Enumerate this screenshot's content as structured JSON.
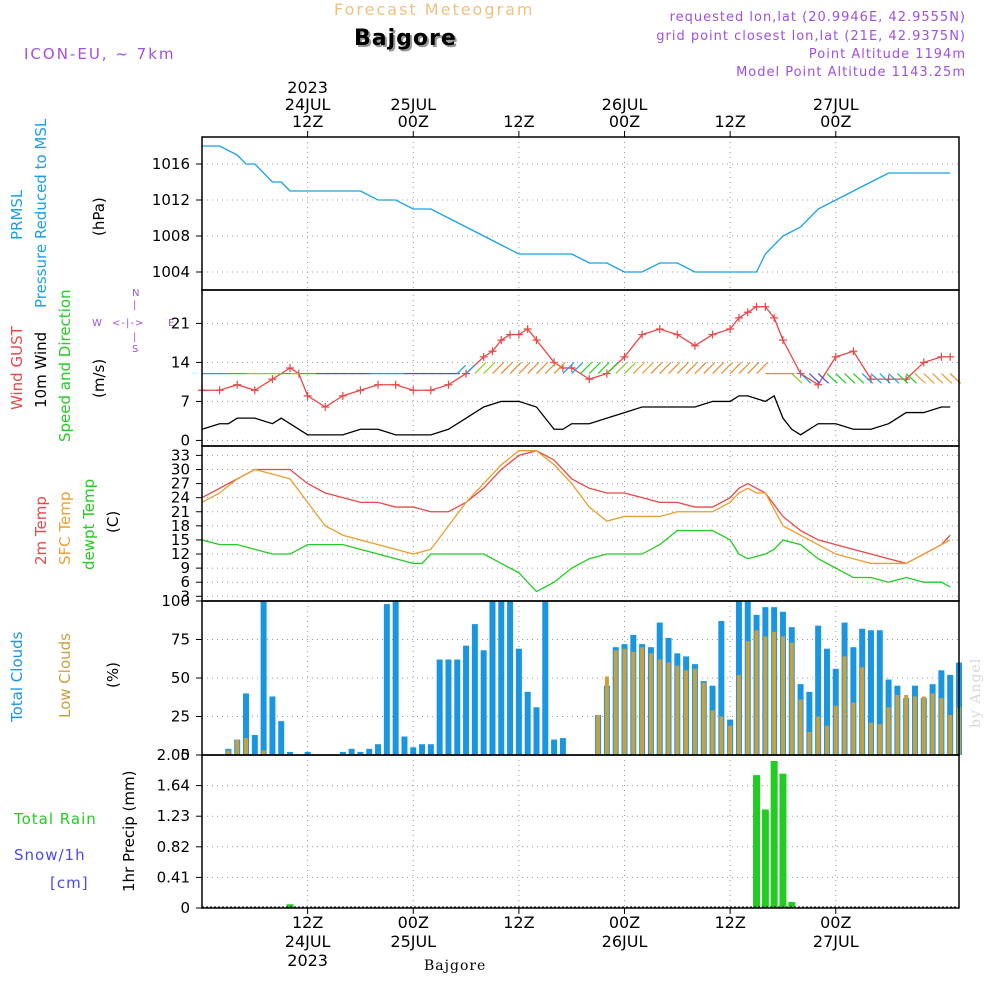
{
  "header": {
    "title_top": "Forecast Meteogram",
    "location": "Bajgore",
    "model": "ICON-EU, ~ 7km",
    "requested": "requested lon,lat (20.9946E, 42.9555N)",
    "grid_point": "grid point closest lon,lat (21E, 42.9375N)",
    "point_alt": "Point Altitude 1194m",
    "model_alt": "Model Point Altitude 1143.25m",
    "bottom_location": "Bajgore",
    "watermark": "by Angel"
  },
  "time_axis": {
    "top_year": "2023",
    "top_labels": [
      {
        "line1": "24JUL",
        "line2": "12Z",
        "h": 12
      },
      {
        "line1": "25JUL",
        "line2": "00Z",
        "h": 24
      },
      {
        "line1": "",
        "line2": "12Z",
        "h": 36
      },
      {
        "line1": "26JUL",
        "line2": "00Z",
        "h": 48
      },
      {
        "line1": "",
        "line2": "12Z",
        "h": 60
      },
      {
        "line1": "27JUL",
        "line2": "00Z",
        "h": 72
      }
    ],
    "bottom_labels": [
      {
        "line1": "12Z",
        "line2": "24JUL",
        "line3": "2023",
        "h": 12
      },
      {
        "line1": "00Z",
        "line2": "25JUL",
        "line3": "",
        "h": 24
      },
      {
        "line1": "12Z",
        "line2": "",
        "line3": "",
        "h": 36
      },
      {
        "line1": "00Z",
        "line2": "26JUL",
        "line3": "",
        "h": 48
      },
      {
        "line1": "12Z",
        "line2": "",
        "line3": "",
        "h": 60
      },
      {
        "line1": "00Z",
        "line2": "27JUL",
        "line3": "",
        "h": 72
      }
    ]
  },
  "panel_labels": {
    "pressure": {
      "name1": "PRMSL",
      "name2": "Pressure Reduced to MSL",
      "unit": "(hPa)"
    },
    "wind": {
      "gust": "Wind GUST",
      "wind10": "10m Wind",
      "speed_dir": "Speed and Direction",
      "unit": "(m/s)",
      "compass_n": "N",
      "compass_s": "S",
      "compass_w": "W",
      "compass_e": "E"
    },
    "temp": {
      "t2m": "2m Temp",
      "sfc": "SFC Temp",
      "dewpt": "dewpt Temp",
      "unit": "(C)"
    },
    "clouds": {
      "total": "Total Clouds",
      "low": "Low Clouds",
      "unit": "(%)"
    },
    "precip": {
      "rain": "Total  Rain",
      "snow": "Snow/1h",
      "snow_unit": "[cm]",
      "axis": "1hr Precip (mm)"
    }
  },
  "colors": {
    "pressure": "#1aa0e6",
    "gust": "#e84848",
    "wind10": "#000000",
    "t2m": "#e84848",
    "sfc": "#e8a030",
    "dewpt": "#22cc22",
    "total_clouds": "#1a96e0",
    "low_clouds": "#c8a040",
    "rain": "#22cc22",
    "snow": "#4a4ae8",
    "purple": "#a050e0",
    "title_orange": "#f0c080"
  },
  "chart_data": [
    {
      "type": "line",
      "name": "Pressure Reduced to MSL",
      "ylabel": "(hPa)",
      "ylim": [
        1002,
        1019
      ],
      "yticks": [
        1004,
        1008,
        1012,
        1016
      ],
      "x": [
        0,
        2,
        4,
        5,
        6,
        8,
        9,
        10,
        12,
        14,
        16,
        18,
        20,
        22,
        24,
        26,
        28,
        30,
        32,
        34,
        36,
        38,
        40,
        42,
        44,
        46,
        48,
        50,
        52,
        54,
        56,
        58,
        60,
        61,
        62,
        63,
        64,
        66,
        68,
        70,
        72,
        74,
        76,
        78,
        80,
        82,
        84,
        85
      ],
      "values": [
        1018,
        1018,
        1017,
        1016,
        1016,
        1014,
        1014,
        1013,
        1013,
        1013,
        1013,
        1013,
        1012,
        1012,
        1011,
        1011,
        1010,
        1009,
        1008,
        1007,
        1006,
        1006,
        1006,
        1006,
        1005,
        1005,
        1004,
        1004,
        1005,
        1005,
        1004,
        1004,
        1004,
        1004,
        1004,
        1004,
        1006,
        1008,
        1009,
        1011,
        1012,
        1013,
        1014,
        1015,
        1015,
        1015,
        1015,
        1015
      ]
    },
    {
      "type": "line",
      "name": "Wind GUST / 10m Wind",
      "ylabel": "(m/s)",
      "ylim": [
        -1,
        27
      ],
      "yticks": [
        0,
        7,
        14,
        21
      ],
      "series": [
        {
          "name": "Wind GUST",
          "x": [
            0,
            2,
            4,
            6,
            8,
            10,
            11,
            12,
            14,
            16,
            18,
            20,
            22,
            24,
            26,
            28,
            30,
            32,
            33,
            34,
            35,
            36,
            37,
            38,
            40,
            41,
            42,
            44,
            46,
            48,
            50,
            52,
            54,
            56,
            58,
            60,
            61,
            62,
            63,
            64,
            65,
            66,
            68,
            70,
            72,
            74,
            76,
            78,
            80,
            82,
            84,
            85
          ],
          "values": [
            9,
            9,
            10,
            9,
            11,
            13,
            12,
            8,
            6,
            8,
            9,
            10,
            10,
            9,
            9,
            10,
            12,
            15,
            16,
            18,
            19,
            19,
            20,
            18,
            14,
            13,
            13,
            11,
            12,
            15,
            19,
            20,
            19,
            17,
            19,
            20,
            22,
            23,
            24,
            24,
            22,
            18,
            12,
            10,
            15,
            16,
            11,
            11,
            11,
            14,
            15,
            15
          ]
        },
        {
          "name": "10m Wind",
          "x": [
            0,
            2,
            3,
            4,
            6,
            8,
            9,
            10,
            12,
            14,
            16,
            18,
            20,
            22,
            24,
            26,
            28,
            30,
            32,
            34,
            35,
            36,
            38,
            40,
            41,
            42,
            44,
            46,
            48,
            50,
            52,
            54,
            56,
            58,
            60,
            61,
            62,
            64,
            65,
            66,
            67,
            68,
            70,
            72,
            74,
            76,
            78,
            80,
            82,
            84,
            85
          ],
          "values": [
            2,
            3,
            3,
            4,
            4,
            3,
            4,
            3,
            1,
            1,
            1,
            2,
            2,
            1,
            1,
            1,
            2,
            4,
            6,
            7,
            7,
            7,
            6,
            2,
            2,
            3,
            3,
            4,
            5,
            6,
            6,
            6,
            6,
            7,
            7,
            8,
            8,
            7,
            8,
            4,
            2,
            1,
            3,
            3,
            2,
            2,
            3,
            5,
            5,
            6,
            6
          ]
        }
      ],
      "wind_barbs": {
        "note": "arrows along y~12 showing direction, colored by speed"
      }
    },
    {
      "type": "line",
      "name": "Temperature",
      "ylabel": "(C)",
      "ylim": [
        2,
        35
      ],
      "yticks": [
        3,
        6,
        9,
        12,
        15,
        18,
        21,
        24,
        27,
        30,
        33
      ],
      "series": [
        {
          "name": "2m Temp",
          "x": [
            0,
            2,
            4,
            6,
            8,
            10,
            12,
            14,
            16,
            18,
            20,
            22,
            24,
            26,
            28,
            30,
            32,
            34,
            36,
            38,
            40,
            42,
            44,
            46,
            48,
            50,
            52,
            54,
            56,
            58,
            60,
            61,
            62,
            63,
            64,
            66,
            68,
            70,
            72,
            74,
            76,
            78,
            80,
            82,
            84,
            85
          ],
          "values": [
            24,
            26,
            28,
            30,
            30,
            30,
            27,
            25,
            24,
            23,
            23,
            22,
            22,
            21,
            21,
            23,
            26,
            30,
            33,
            34,
            32,
            28,
            26,
            25,
            25,
            24,
            23,
            23,
            22,
            22,
            24,
            26,
            27,
            26,
            25,
            20,
            17,
            15,
            14,
            13,
            12,
            11,
            10,
            12,
            14,
            16
          ]
        },
        {
          "name": "SFC Temp",
          "x": [
            0,
            2,
            4,
            6,
            8,
            10,
            12,
            14,
            16,
            18,
            20,
            22,
            24,
            26,
            28,
            30,
            32,
            34,
            36,
            38,
            40,
            42,
            44,
            46,
            48,
            50,
            52,
            54,
            56,
            58,
            60,
            61,
            62,
            63,
            64,
            66,
            68,
            70,
            72,
            74,
            76,
            78,
            80,
            82,
            84,
            85
          ],
          "values": [
            23,
            25,
            28,
            30,
            29,
            28,
            23,
            18,
            16,
            15,
            14,
            13,
            12,
            13,
            18,
            23,
            27,
            31,
            34,
            34,
            31,
            27,
            22,
            19,
            20,
            20,
            20,
            21,
            21,
            21,
            23,
            25,
            26,
            25,
            25,
            18,
            16,
            14,
            12,
            11,
            10,
            10,
            10,
            12,
            14,
            15
          ]
        },
        {
          "name": "dewpt Temp",
          "x": [
            0,
            2,
            4,
            6,
            8,
            10,
            12,
            14,
            16,
            18,
            20,
            22,
            24,
            25,
            26,
            28,
            30,
            32,
            33,
            34,
            35,
            36,
            37,
            38,
            40,
            42,
            44,
            46,
            48,
            50,
            52,
            54,
            56,
            58,
            60,
            61,
            62,
            64,
            65,
            66,
            68,
            70,
            72,
            74,
            76,
            78,
            80,
            82,
            84,
            85
          ],
          "values": [
            15,
            14,
            14,
            13,
            12,
            12,
            14,
            14,
            14,
            13,
            12,
            11,
            10,
            10,
            12,
            12,
            12,
            12,
            11,
            10,
            9,
            8,
            6,
            4,
            6,
            9,
            11,
            12,
            12,
            12,
            14,
            17,
            17,
            17,
            15,
            12,
            11,
            12,
            13,
            15,
            14,
            11,
            9,
            7,
            7,
            6,
            7,
            6,
            6,
            5
          ]
        }
      ]
    },
    {
      "type": "bar",
      "name": "Clouds",
      "ylabel": "(%)",
      "ylim": [
        0,
        100
      ],
      "yticks": [
        0,
        25,
        50,
        75,
        100
      ],
      "series": [
        {
          "name": "Total Clouds",
          "values": [
            0,
            0,
            0,
            4,
            10,
            40,
            13,
            100,
            38,
            22,
            2,
            0,
            2,
            0,
            0,
            0,
            2,
            4,
            2,
            4,
            7,
            98,
            100,
            12,
            5,
            7,
            7,
            62,
            62,
            62,
            71,
            85,
            68,
            100,
            100,
            100,
            69,
            41,
            31,
            100,
            10,
            11,
            0,
            0,
            0,
            26,
            45,
            70,
            72,
            78,
            72,
            70,
            86,
            76,
            66,
            64,
            59,
            48,
            45,
            87,
            23,
            100,
            100,
            91,
            96,
            96,
            93,
            83,
            46,
            41,
            84,
            69,
            56,
            86,
            70,
            82,
            81,
            81,
            49,
            45,
            37,
            45,
            37,
            46,
            55,
            52,
            60
          ]
        },
        {
          "name": "Low Clouds",
          "values": [
            0,
            0,
            0,
            3,
            10,
            11,
            0,
            3,
            0,
            0,
            0,
            0,
            0,
            0,
            0,
            0,
            0,
            0,
            0,
            0,
            0,
            0,
            0,
            0,
            0,
            0,
            0,
            0,
            0,
            0,
            0,
            0,
            0,
            0,
            0,
            0,
            0,
            0,
            0,
            0,
            0,
            0,
            0,
            0,
            0,
            26,
            51,
            68,
            69,
            67,
            70,
            66,
            62,
            60,
            58,
            55,
            56,
            47,
            29,
            25,
            19,
            52,
            74,
            81,
            77,
            80,
            77,
            73,
            36,
            15,
            25,
            19,
            32,
            64,
            34,
            57,
            21,
            20,
            31,
            39,
            39,
            38,
            38,
            40,
            37,
            26,
            31
          ]
        }
      ]
    },
    {
      "type": "bar",
      "name": "1hr Precip",
      "ylabel": "1hr Precip (mm)",
      "ylim": [
        0,
        2.05
      ],
      "yticks": [
        0,
        0.41,
        0.82,
        1.23,
        1.64,
        2.05
      ],
      "series": [
        {
          "name": "Total Rain",
          "x": [
            10,
            63,
            64,
            65,
            66,
            67
          ],
          "values": [
            0.05,
            1.78,
            1.32,
            1.97,
            1.8,
            0.08
          ]
        }
      ]
    }
  ]
}
